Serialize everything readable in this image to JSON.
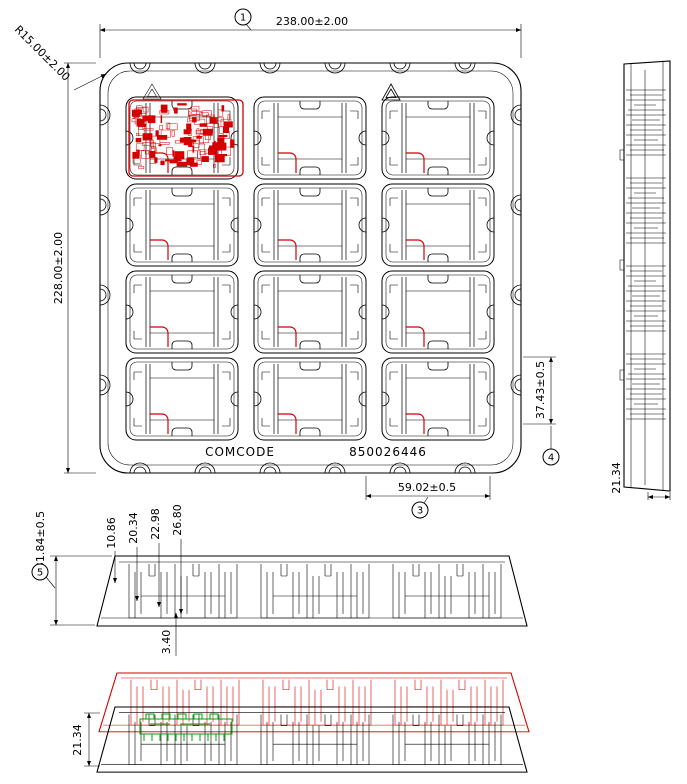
{
  "drawing": {
    "top_view": {
      "dim_width": "238.00±2.00",
      "dim_height": "228.00±2.00",
      "dim_corner_radius": "R15.00±2.00",
      "dim_pocket_pitch_x": "59.02±0.5",
      "dim_pocket_pitch_y": "37.43±0.5",
      "comcode_label": "COMCODE",
      "part_number": "850026446"
    },
    "balloons": {
      "b1": "1",
      "b3": "3",
      "b4": "4",
      "b5": "5"
    },
    "side_view": {
      "dim_thickness": "21.34"
    },
    "front_view": {
      "dim_overall_height": "31.84±0.5",
      "dim_step_1": "10.86",
      "dim_step_2": "20.34",
      "dim_step_3": "22.98",
      "dim_step_4": "26.80",
      "dim_base": "3.40"
    },
    "stack_view": {
      "dim_stack_pitch": "21.34"
    },
    "colors": {
      "line": "#000000",
      "highlight": "#d40000",
      "component": "#00a000"
    }
  }
}
